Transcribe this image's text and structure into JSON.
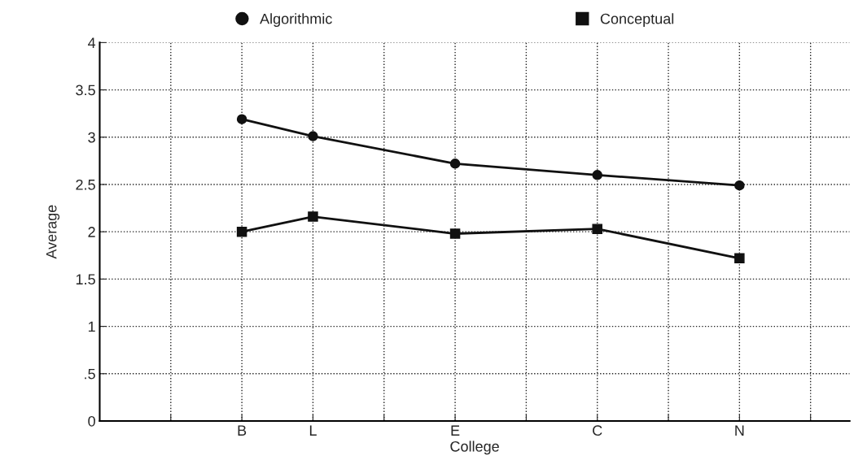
{
  "chart_data": {
    "type": "line",
    "xlabel": "College",
    "ylabel": "Average",
    "categories": [
      null,
      "B",
      "L",
      null,
      "E",
      null,
      "C",
      null,
      "N",
      null
    ],
    "series": [
      {
        "name": "Algorithmic",
        "color": "#111111",
        "marker": "circle",
        "values": [
          null,
          3.19,
          3.01,
          null,
          2.72,
          null,
          2.6,
          null,
          2.49,
          null
        ]
      },
      {
        "name": "Conceptual",
        "color": "#111111",
        "marker": "square",
        "values": [
          null,
          2.0,
          2.16,
          null,
          1.98,
          null,
          2.03,
          null,
          1.72,
          null
        ]
      }
    ],
    "ylim": [
      0,
      4
    ],
    "yticks": [
      0,
      {
        "value": 0.5,
        "label": ".5"
      },
      1,
      1.5,
      2,
      2.5,
      3,
      3.5,
      4
    ],
    "grid": true,
    "legend": "top",
    "line_style": "solid"
  }
}
